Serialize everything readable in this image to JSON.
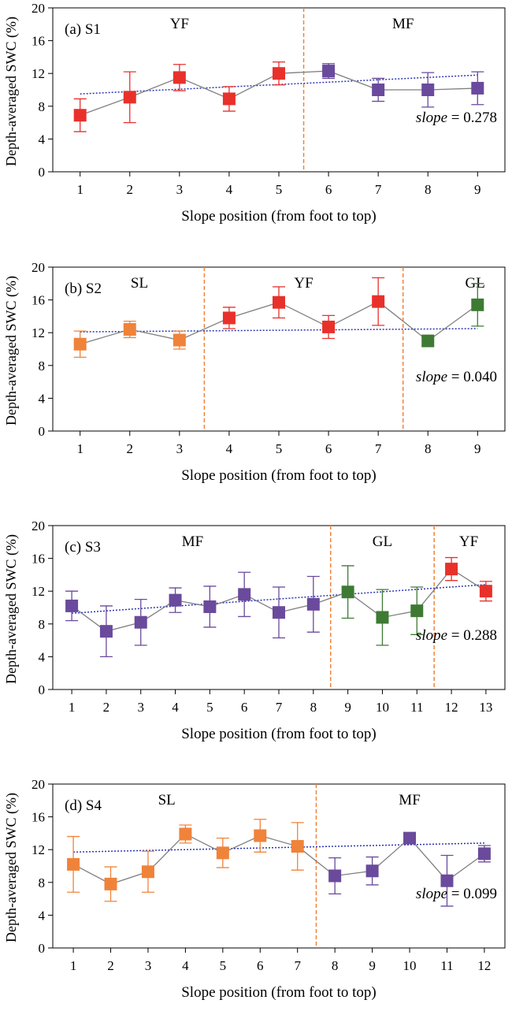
{
  "colors": {
    "YF": "#e8312b",
    "MF": "#6a4a9c",
    "SL": "#f0833a",
    "GL": "#3e7a34",
    "connector": "#7f7f7f",
    "trend": "#2b35b5",
    "divider": "#f0833a"
  },
  "chart_data": [
    {
      "type": "scatter",
      "panel_label": "(a) S1",
      "xlabel": "Slope position (from foot to top)",
      "ylabel": "Depth-averaged SWC (%)",
      "ylim": [
        0,
        20
      ],
      "yticks": [
        "0",
        "4",
        "8",
        "12",
        "16",
        "20"
      ],
      "xticks": [
        "1",
        "2",
        "3",
        "4",
        "5",
        "6",
        "7",
        "8",
        "9"
      ],
      "slope_label": "slope",
      "slope_value": "= 0.278",
      "zones": [
        {
          "name": "YF",
          "start": 1,
          "end": 5
        },
        {
          "name": "MF",
          "start": 6,
          "end": 9
        }
      ],
      "points": [
        {
          "x": 1,
          "y": 6.9,
          "err": 2.0,
          "class": "YF"
        },
        {
          "x": 2,
          "y": 9.1,
          "err": 3.1,
          "class": "YF"
        },
        {
          "x": 3,
          "y": 11.5,
          "err": 1.6,
          "class": "YF"
        },
        {
          "x": 4,
          "y": 8.9,
          "err": 1.5,
          "class": "YF"
        },
        {
          "x": 5,
          "y": 12.0,
          "err": 1.4,
          "class": "YF"
        },
        {
          "x": 6,
          "y": 12.3,
          "err": 0.9,
          "class": "MF"
        },
        {
          "x": 7,
          "y": 10.0,
          "err": 1.4,
          "class": "MF"
        },
        {
          "x": 8,
          "y": 10.0,
          "err": 2.1,
          "class": "MF"
        },
        {
          "x": 9,
          "y": 10.2,
          "err": 2.0,
          "class": "MF"
        }
      ],
      "trend": {
        "y_start": 9.5,
        "y_end": 11.8
      }
    },
    {
      "type": "scatter",
      "panel_label": "(b) S2",
      "xlabel": "Slope position (from foot to top)",
      "ylabel": "Depth-averaged SWC (%)",
      "ylim": [
        0,
        20
      ],
      "yticks": [
        "0",
        "4",
        "8",
        "12",
        "16",
        "20"
      ],
      "xticks": [
        "1",
        "2",
        "3",
        "4",
        "5",
        "6",
        "7",
        "8",
        "9"
      ],
      "slope_label": "slope",
      "slope_value": "= 0.040",
      "zones": [
        {
          "name": "SL",
          "start": 1,
          "end": 3
        },
        {
          "name": "YF",
          "start": 4,
          "end": 7
        },
        {
          "name": "GL",
          "start": 8,
          "end": 9
        }
      ],
      "points": [
        {
          "x": 1,
          "y": 10.6,
          "err": 1.6,
          "class": "SL"
        },
        {
          "x": 2,
          "y": 12.4,
          "err": 1.0,
          "class": "SL"
        },
        {
          "x": 3,
          "y": 11.1,
          "err": 1.1,
          "class": "SL"
        },
        {
          "x": 4,
          "y": 13.8,
          "err": 1.3,
          "class": "YF"
        },
        {
          "x": 5,
          "y": 15.7,
          "err": 1.9,
          "class": "YF"
        },
        {
          "x": 6,
          "y": 12.7,
          "err": 1.4,
          "class": "YF"
        },
        {
          "x": 7,
          "y": 15.8,
          "err": 2.9,
          "class": "YF"
        },
        {
          "x": 8,
          "y": 11.0,
          "err": 0.6,
          "class": "GL"
        },
        {
          "x": 9,
          "y": 15.4,
          "err": 2.6,
          "class": "GL"
        }
      ],
      "trend": {
        "y_start": 12.1,
        "y_end": 12.5
      }
    },
    {
      "type": "scatter",
      "panel_label": "(c) S3",
      "xlabel": "Slope position (from foot to top)",
      "ylabel": "Depth-averaged SWC (%)",
      "ylim": [
        0,
        20
      ],
      "yticks": [
        "0",
        "4",
        "8",
        "12",
        "16",
        "20"
      ],
      "xticks": [
        "1",
        "2",
        "3",
        "4",
        "5",
        "6",
        "7",
        "8",
        "9",
        "10",
        "11",
        "12",
        "13"
      ],
      "slope_label": "slope",
      "slope_value": "= 0.288",
      "zones": [
        {
          "name": "MF",
          "start": 1,
          "end": 8
        },
        {
          "name": "GL",
          "start": 9,
          "end": 11
        },
        {
          "name": "YF",
          "start": 12,
          "end": 13
        }
      ],
      "points": [
        {
          "x": 1,
          "y": 10.2,
          "err": 1.8,
          "class": "MF"
        },
        {
          "x": 2,
          "y": 7.1,
          "err": 3.1,
          "class": "MF"
        },
        {
          "x": 3,
          "y": 8.2,
          "err": 2.8,
          "class": "MF"
        },
        {
          "x": 4,
          "y": 10.9,
          "err": 1.5,
          "class": "MF"
        },
        {
          "x": 5,
          "y": 10.1,
          "err": 2.5,
          "class": "MF"
        },
        {
          "x": 6,
          "y": 11.6,
          "err": 2.7,
          "class": "MF"
        },
        {
          "x": 7,
          "y": 9.4,
          "err": 3.1,
          "class": "MF"
        },
        {
          "x": 8,
          "y": 10.4,
          "err": 3.4,
          "class": "MF"
        },
        {
          "x": 9,
          "y": 11.9,
          "err": 3.2,
          "class": "GL"
        },
        {
          "x": 10,
          "y": 8.8,
          "err": 3.4,
          "class": "GL"
        },
        {
          "x": 11,
          "y": 9.6,
          "err": 2.9,
          "class": "GL"
        },
        {
          "x": 12,
          "y": 14.7,
          "err": 1.4,
          "class": "YF"
        },
        {
          "x": 13,
          "y": 12.0,
          "err": 1.2,
          "class": "YF"
        }
      ],
      "trend": {
        "y_start": 9.3,
        "y_end": 12.8
      }
    },
    {
      "type": "scatter",
      "panel_label": "(d) S4",
      "xlabel": "Slope position (from foot to top)",
      "ylabel": "Depth-averaged SWC (%)",
      "ylim": [
        0,
        20
      ],
      "yticks": [
        "0",
        "4",
        "8",
        "12",
        "16",
        "20"
      ],
      "xticks": [
        "1",
        "2",
        "3",
        "4",
        "5",
        "6",
        "7",
        "8",
        "9",
        "10",
        "11",
        "12"
      ],
      "slope_label": "slope",
      "slope_value": "= 0.099",
      "zones": [
        {
          "name": "SL",
          "start": 1,
          "end": 7
        },
        {
          "name": "MF",
          "start": 8,
          "end": 12
        }
      ],
      "points": [
        {
          "x": 1,
          "y": 10.2,
          "err": 3.4,
          "class": "SL"
        },
        {
          "x": 2,
          "y": 7.8,
          "err": 2.1,
          "class": "SL"
        },
        {
          "x": 3,
          "y": 9.3,
          "err": 2.5,
          "class": "SL"
        },
        {
          "x": 4,
          "y": 13.9,
          "err": 1.1,
          "class": "SL"
        },
        {
          "x": 5,
          "y": 11.6,
          "err": 1.8,
          "class": "SL"
        },
        {
          "x": 6,
          "y": 13.7,
          "err": 2.0,
          "class": "SL"
        },
        {
          "x": 7,
          "y": 12.4,
          "err": 2.9,
          "class": "SL"
        },
        {
          "x": 8,
          "y": 8.8,
          "err": 2.2,
          "class": "MF"
        },
        {
          "x": 9,
          "y": 9.4,
          "err": 1.7,
          "class": "MF"
        },
        {
          "x": 10,
          "y": 13.4,
          "err": 0.5,
          "class": "MF"
        },
        {
          "x": 11,
          "y": 8.2,
          "err": 3.1,
          "class": "MF"
        },
        {
          "x": 12,
          "y": 11.5,
          "err": 1.0,
          "class": "MF"
        }
      ],
      "trend": {
        "y_start": 11.7,
        "y_end": 12.8
      }
    }
  ]
}
